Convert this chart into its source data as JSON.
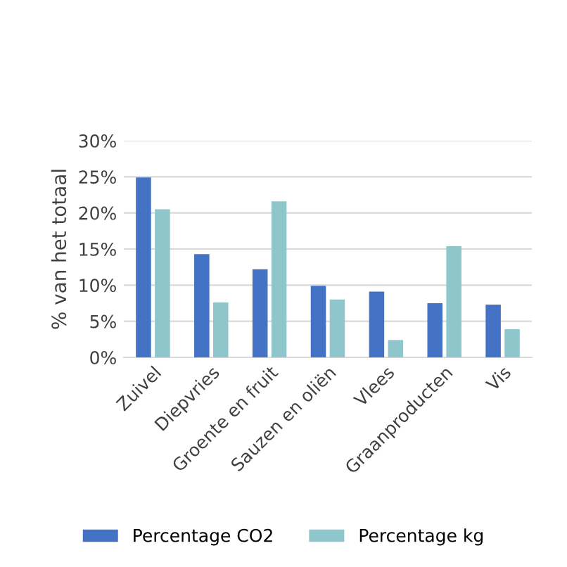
{
  "chart_data": {
    "type": "bar",
    "ylabel": "% van het totaal",
    "categories": [
      "Zuivel",
      "Diepvries",
      "Groente en fruit",
      "Sauzen en oliën",
      "Vlees",
      "Graanproducten",
      "Vis"
    ],
    "series": [
      {
        "name": "Percentage CO2",
        "color": "#4472c4",
        "values": [
          24.9,
          14.3,
          12.2,
          9.9,
          9.1,
          7.5,
          7.3
        ]
      },
      {
        "name": "Percentage kg",
        "color": "#8fc6cc",
        "values": [
          20.5,
          7.6,
          21.6,
          8.0,
          2.4,
          15.4,
          3.9
        ]
      }
    ],
    "ylim": [
      0,
      30
    ],
    "yticks": [
      {
        "value": 0,
        "label": "0%"
      },
      {
        "value": 5,
        "label": "5%"
      },
      {
        "value": 10,
        "label": "10%"
      },
      {
        "value": 15,
        "label": "15%"
      },
      {
        "value": 20,
        "label": "20%"
      },
      {
        "value": 25,
        "label": "25%"
      },
      {
        "value": 30,
        "label": "30%"
      }
    ],
    "grid": "y",
    "legend": "bottom"
  }
}
